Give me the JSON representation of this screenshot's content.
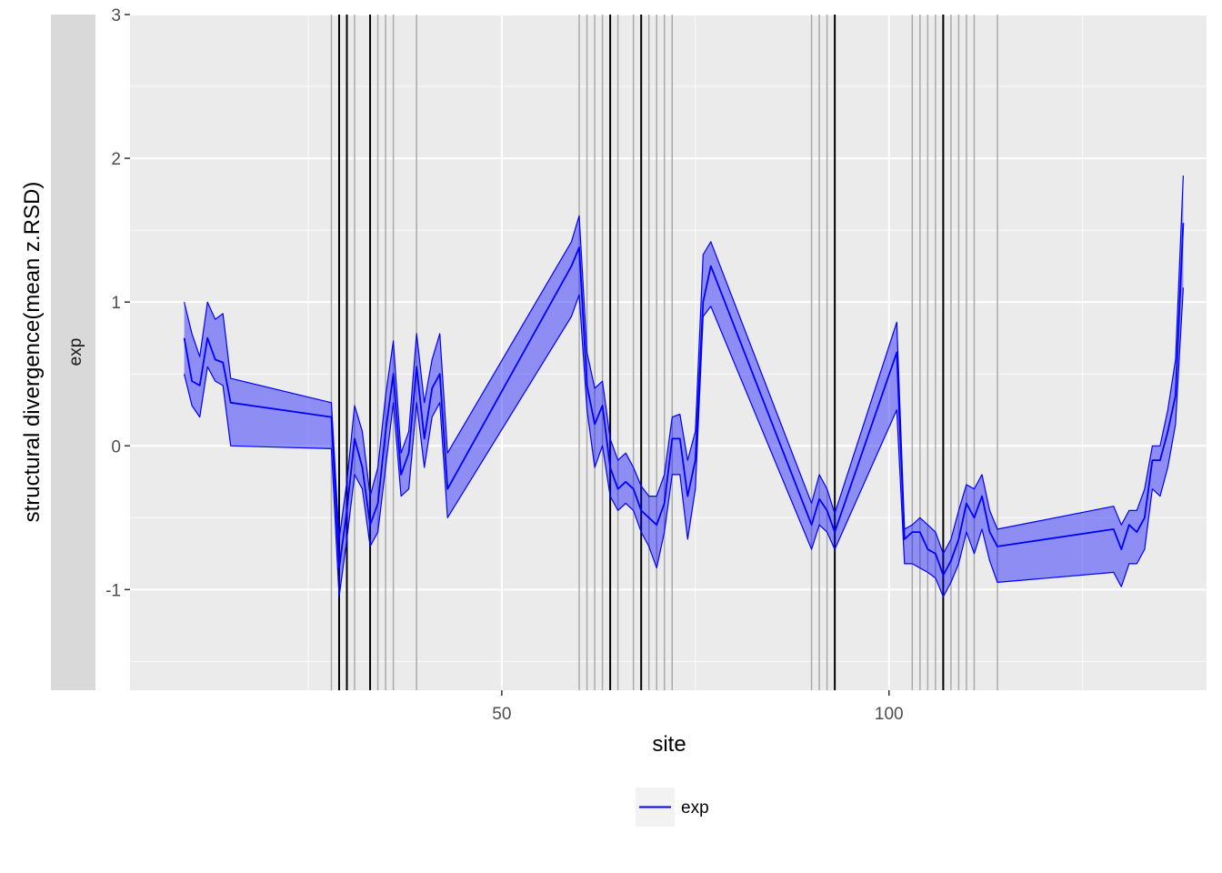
{
  "chart_data": {
    "type": "area",
    "facet_label": "exp",
    "xlabel": "site",
    "ylabel": "structural divergence(mean z.RSD)",
    "xlim": [
      2,
      141
    ],
    "ylim": [
      -1.7,
      3
    ],
    "x_ticks": [
      50,
      100
    ],
    "y_ticks": [
      -1,
      0,
      1,
      2,
      3
    ],
    "grid": true,
    "legend_position": "bottom",
    "legend": [
      {
        "label": "exp",
        "color": "#0000ff"
      }
    ],
    "colors": {
      "line": "#0000ff",
      "ribbon": "#0000ff",
      "panel_bg": "#ebebeb",
      "grid": "#ffffff",
      "strip_bg": "#d9d9d9",
      "vline_major": "#000000",
      "vline_minor": "#aaaaaa"
    },
    "vlines_black": [
      29,
      30,
      33,
      64,
      68,
      93,
      107
    ],
    "vlines_grey": [
      28,
      31,
      34,
      35,
      36,
      39,
      60,
      61,
      62,
      63,
      65,
      67,
      69,
      70,
      71,
      72,
      90,
      91,
      92,
      103,
      104,
      105,
      106,
      108,
      109,
      110,
      111,
      114
    ],
    "series": [
      {
        "name": "exp",
        "x": [
          9,
          10,
          11,
          12,
          13,
          14,
          15,
          28,
          29,
          30,
          31,
          32,
          33,
          34,
          35,
          36,
          37,
          38,
          39,
          40,
          41,
          42,
          43,
          59,
          60,
          61,
          62,
          63,
          64,
          65,
          66,
          67,
          68,
          69,
          70,
          71,
          72,
          73,
          74,
          75,
          76,
          77,
          90,
          91,
          92,
          93,
          101,
          102,
          103,
          104,
          105,
          106,
          107,
          108,
          109,
          110,
          111,
          112,
          113,
          114,
          129,
          130,
          131,
          132,
          133,
          134,
          135,
          136,
          137,
          138
        ],
        "mean": [
          0.75,
          0.45,
          0.42,
          0.75,
          0.6,
          0.58,
          0.3,
          0.2,
          -0.85,
          -0.45,
          0.05,
          -0.15,
          -0.55,
          -0.4,
          0.1,
          0.5,
          -0.2,
          -0.05,
          0.55,
          0.05,
          0.4,
          0.5,
          -0.3,
          1.25,
          1.38,
          0.42,
          0.15,
          0.28,
          -0.15,
          -0.3,
          -0.25,
          -0.3,
          -0.45,
          -0.5,
          -0.55,
          -0.4,
          0.05,
          0.05,
          -0.35,
          -0.1,
          1.0,
          1.25,
          -0.55,
          -0.37,
          -0.45,
          -0.6,
          0.65,
          -0.65,
          -0.6,
          -0.6,
          -0.72,
          -0.75,
          -0.9,
          -0.8,
          -0.65,
          -0.4,
          -0.5,
          -0.35,
          -0.6,
          -0.7,
          -0.58,
          -0.72,
          -0.55,
          -0.6,
          -0.5,
          -0.1,
          -0.1,
          0.1,
          0.35,
          1.55
        ],
        "lower": [
          0.5,
          0.28,
          0.2,
          0.55,
          0.45,
          0.42,
          0.0,
          -0.02,
          -1.05,
          -0.65,
          -0.2,
          -0.3,
          -0.7,
          -0.6,
          -0.15,
          0.3,
          -0.35,
          -0.3,
          0.3,
          -0.15,
          0.2,
          0.3,
          -0.5,
          0.9,
          1.05,
          0.25,
          -0.15,
          0.0,
          -0.35,
          -0.45,
          -0.4,
          -0.45,
          -0.6,
          -0.7,
          -0.85,
          -0.6,
          -0.2,
          -0.2,
          -0.65,
          -0.3,
          0.9,
          0.97,
          -0.72,
          -0.55,
          -0.6,
          -0.72,
          0.25,
          -0.82,
          -0.82,
          -0.85,
          -0.88,
          -0.92,
          -1.05,
          -0.95,
          -0.82,
          -0.6,
          -0.75,
          -0.58,
          -0.8,
          -0.95,
          -0.88,
          -0.98,
          -0.82,
          -0.82,
          -0.72,
          -0.3,
          -0.35,
          -0.15,
          0.15,
          1.1
        ],
        "upper": [
          1.0,
          0.78,
          0.62,
          1.0,
          0.88,
          0.92,
          0.47,
          0.3,
          -0.65,
          -0.25,
          0.28,
          0.1,
          -0.35,
          -0.15,
          0.35,
          0.73,
          -0.05,
          0.1,
          0.78,
          0.3,
          0.6,
          0.78,
          -0.05,
          1.42,
          1.6,
          0.65,
          0.4,
          0.45,
          0.05,
          -0.1,
          -0.05,
          -0.15,
          -0.28,
          -0.35,
          -0.35,
          -0.2,
          0.2,
          0.22,
          -0.1,
          0.1,
          1.33,
          1.42,
          -0.4,
          -0.2,
          -0.3,
          -0.47,
          0.86,
          -0.58,
          -0.55,
          -0.5,
          -0.55,
          -0.6,
          -0.75,
          -0.65,
          -0.45,
          -0.27,
          -0.3,
          -0.2,
          -0.45,
          -0.58,
          -0.42,
          -0.55,
          -0.45,
          -0.45,
          -0.3,
          0.0,
          0.0,
          0.25,
          0.6,
          1.88
        ]
      }
    ]
  }
}
